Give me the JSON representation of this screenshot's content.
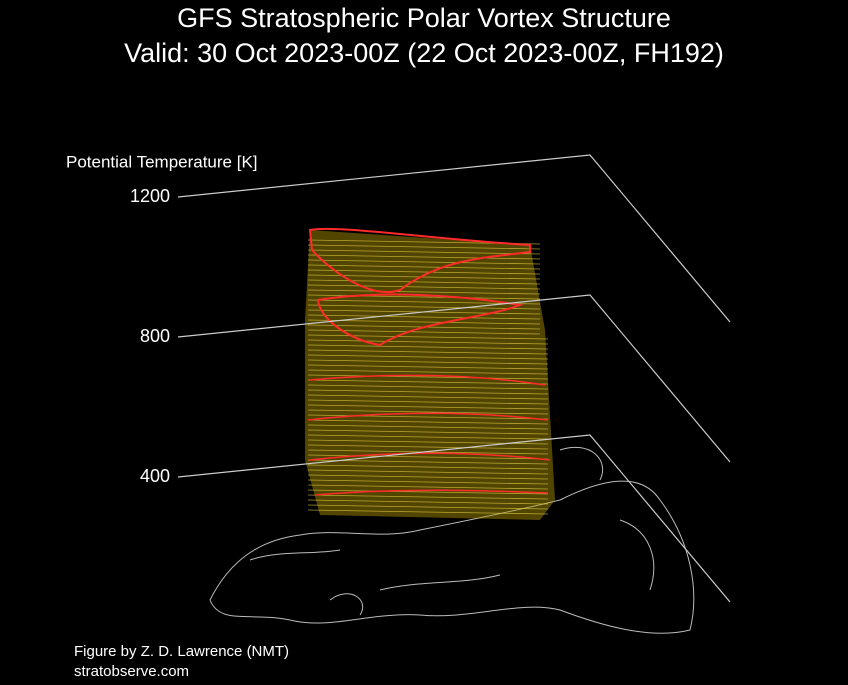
{
  "chart_data": {
    "type": "vortex-3d",
    "title": "GFS Stratospheric Polar Vortex Structure",
    "subtitle": "Valid: 30 Oct 2023-00Z  (22 Oct 2023-00Z, FH192)",
    "ylabel": "Potential Temperature [K]",
    "ylim": [
      400,
      1200
    ],
    "yticks": [
      400,
      800,
      1200
    ],
    "credits": [
      "Figure by Z. D. Lawrence (NMT)",
      "stratobserve.com"
    ]
  }
}
